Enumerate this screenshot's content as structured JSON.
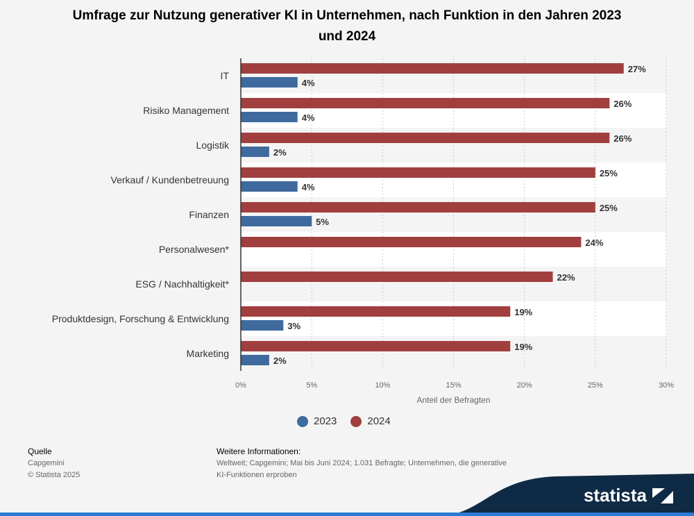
{
  "title": "Umfrage zur Nutzung generativer KI in Unternehmen, nach Funktion in den Jahren 2023 und 2024",
  "colors": {
    "s2023": "#3e6a9e",
    "s2024": "#a13f3f",
    "grid": "#c8c8c8",
    "band": "#ffffff"
  },
  "chart_data": {
    "type": "bar",
    "orientation": "horizontal",
    "categories": [
      "IT",
      "Risiko Management",
      "Logistik",
      "Verkauf / Kundenbetreuung",
      "Finanzen",
      "Personalwesen*",
      "ESG / Nachhaltigkeit*",
      "Produktdesign, Forschung & Entwicklung",
      "Marketing"
    ],
    "series": [
      {
        "name": "2024",
        "values": [
          27,
          26,
          26,
          25,
          25,
          24,
          22,
          19,
          19
        ]
      },
      {
        "name": "2023",
        "values": [
          4,
          4,
          2,
          4,
          5,
          null,
          null,
          3,
          2
        ]
      }
    ],
    "xlabel": "Anteil der Befragten",
    "xlim": [
      0,
      30
    ],
    "xticks": [
      0,
      5,
      10,
      15,
      20,
      25,
      30
    ],
    "tick_suffix": "%",
    "grid": true,
    "legend": "bottom"
  },
  "legend": {
    "items": [
      {
        "label": "2023"
      },
      {
        "label": "2024"
      }
    ]
  },
  "footer": {
    "source_title": "Quelle",
    "source_lines": [
      "Capgemini",
      "© Statista 2025"
    ],
    "info_title": "Weitere Informationen:",
    "info_text": "Weltweit; Capgemini; Mai bis Juni 2024; 1.031 Befragte; Unternehmen, die generative KI-Funktionen erproben"
  },
  "brand": {
    "name": "statista"
  }
}
